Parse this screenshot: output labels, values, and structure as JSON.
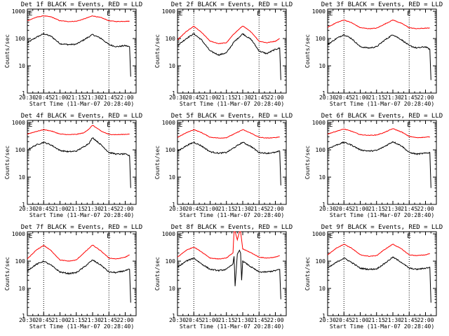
{
  "figure": {
    "x_tick_labels": [
      "20:30",
      "20:45",
      "21:00",
      "21:15",
      "21:30",
      "21:45",
      "22:00"
    ],
    "y_tick_labels": [
      "1",
      "10",
      "100",
      "1000"
    ],
    "xlabel": "Start Time (11-Mar-07 20:28:40)",
    "ylabel": "Counts/sec",
    "series_names": [
      "Events",
      "LLD"
    ],
    "colors": {
      "events": "#000000",
      "lld": "#ff0000",
      "axes": "#000000",
      "background": "#ffffff"
    },
    "marker_labels": [
      "E",
      "E"
    ]
  },
  "chart_data": [
    {
      "type": "line",
      "title": "Det 1f BLACK = Events, RED = LLD",
      "xlabel": "Start Time (11-Mar-07 20:28:40)",
      "ylabel": "Counts/sec",
      "xlim_minutes_after_20_30": [
        0,
        100
      ],
      "ylim": [
        1,
        1200
      ],
      "y_scale": "log",
      "grid": false,
      "vertical_lines_at": [
        "20:45",
        "21:45"
      ],
      "series": [
        {
          "name": "Events",
          "color": "#000000",
          "x": [
            "20:30",
            "20:38",
            "20:45",
            "20:52",
            "21:00",
            "21:08",
            "21:15",
            "21:22",
            "21:30",
            "21:38",
            "21:45",
            "21:52",
            "22:00",
            "22:04",
            "22:05"
          ],
          "values": [
            70,
            110,
            150,
            120,
            65,
            60,
            62,
            90,
            140,
            100,
            60,
            50,
            55,
            50,
            4
          ]
        },
        {
          "name": "LLD",
          "color": "#ff0000",
          "x": [
            "20:30",
            "20:38",
            "20:45",
            "20:52",
            "21:00",
            "21:08",
            "21:15",
            "21:22",
            "21:30",
            "21:38",
            "21:45",
            "21:52",
            "22:00",
            "22:04"
          ],
          "values": [
            450,
            600,
            680,
            620,
            450,
            420,
            430,
            520,
            680,
            580,
            450,
            420,
            430,
            430
          ]
        }
      ]
    },
    {
      "type": "line",
      "title": "Det 2f BLACK = Events, RED = LLD",
      "xlabel": "Start Time (11-Mar-07 20:28:40)",
      "ylabel": "Counts/sec",
      "xlim_minutes_after_20_30": [
        0,
        100
      ],
      "ylim": [
        1,
        1200
      ],
      "y_scale": "log",
      "grid": false,
      "vertical_lines_at": [
        "20:45",
        "21:45"
      ],
      "series": [
        {
          "name": "Events",
          "color": "#000000",
          "x": [
            "20:30",
            "20:38",
            "20:45",
            "20:52",
            "21:00",
            "21:08",
            "21:15",
            "21:22",
            "21:30",
            "21:38",
            "21:45",
            "21:52",
            "22:00",
            "22:04",
            "22:05"
          ],
          "values": [
            55,
            100,
            150,
            90,
            35,
            25,
            30,
            75,
            150,
            90,
            35,
            28,
            40,
            45,
            3
          ]
        },
        {
          "name": "LLD",
          "color": "#ff0000",
          "x": [
            "20:30",
            "20:38",
            "20:45",
            "20:52",
            "21:00",
            "21:08",
            "21:15",
            "21:22",
            "21:30",
            "21:38",
            "21:45",
            "21:52",
            "22:00",
            "22:04"
          ],
          "values": [
            90,
            180,
            280,
            170,
            80,
            65,
            70,
            150,
            290,
            170,
            80,
            70,
            80,
            100
          ]
        }
      ]
    },
    {
      "type": "line",
      "title": "Det 3f BLACK = Events, RED = LLD",
      "xlabel": "Start Time (11-Mar-07 20:28:40)",
      "ylabel": "Counts/sec",
      "xlim_minutes_after_20_30": [
        0,
        100
      ],
      "ylim": [
        1,
        1200
      ],
      "y_scale": "log",
      "grid": false,
      "vertical_lines_at": [
        "20:45",
        "21:45"
      ],
      "series": [
        {
          "name": "Events",
          "color": "#000000",
          "x": [
            "20:30",
            "20:38",
            "20:45",
            "20:52",
            "21:00",
            "21:08",
            "21:15",
            "21:22",
            "21:30",
            "21:38",
            "21:45",
            "21:52",
            "22:00",
            "22:04",
            "22:05"
          ],
          "values": [
            60,
            100,
            140,
            100,
            50,
            45,
            50,
            85,
            140,
            90,
            55,
            45,
            50,
            40,
            3
          ]
        },
        {
          "name": "LLD",
          "color": "#ff0000",
          "x": [
            "20:30",
            "20:38",
            "20:45",
            "20:52",
            "21:00",
            "21:08",
            "21:15",
            "21:22",
            "21:30",
            "21:38",
            "21:45",
            "21:52",
            "22:00",
            "22:04"
          ],
          "values": [
            260,
            380,
            480,
            380,
            250,
            230,
            240,
            330,
            480,
            360,
            250,
            230,
            240,
            240
          ]
        }
      ]
    },
    {
      "type": "line",
      "title": "Det 4f BLACK = Events, RED = LLD",
      "xlabel": "Start Time (11-Mar-07 20:28:40)",
      "ylabel": "Counts/sec",
      "xlim_minutes_after_20_30": [
        0,
        100
      ],
      "ylim": [
        1,
        1200
      ],
      "y_scale": "log",
      "grid": false,
      "vertical_lines_at": [
        "20:45",
        "21:45"
      ],
      "series": [
        {
          "name": "Events",
          "color": "#000000",
          "x": [
            "20:30",
            "20:38",
            "20:45",
            "20:52",
            "21:00",
            "21:08",
            "21:15",
            "21:22",
            "21:27",
            "21:30",
            "21:38",
            "21:45",
            "21:52",
            "22:00",
            "22:04",
            "22:05"
          ],
          "values": [
            100,
            150,
            190,
            150,
            95,
            85,
            90,
            130,
            180,
            280,
            150,
            80,
            70,
            70,
            60,
            4
          ]
        },
        {
          "name": "LLD",
          "color": "#ff0000",
          "x": [
            "20:30",
            "20:38",
            "20:45",
            "20:52",
            "21:00",
            "21:08",
            "21:15",
            "21:22",
            "21:27",
            "21:30",
            "21:38",
            "21:45",
            "21:52",
            "22:00",
            "22:04"
          ],
          "values": [
            380,
            470,
            550,
            490,
            380,
            360,
            370,
            420,
            600,
            800,
            480,
            370,
            360,
            370,
            380
          ]
        }
      ]
    },
    {
      "type": "line",
      "title": "Det 5f BLACK = Events, RED = LLD",
      "xlabel": "Start Time (11-Mar-07 20:28:40)",
      "ylabel": "Counts/sec",
      "xlim_minutes_after_20_30": [
        0,
        100
      ],
      "ylim": [
        1,
        1200
      ],
      "y_scale": "log",
      "grid": false,
      "vertical_lines_at": [
        "20:45",
        "21:45"
      ],
      "series": [
        {
          "name": "Events",
          "color": "#000000",
          "x": [
            "20:30",
            "20:38",
            "20:45",
            "20:52",
            "21:00",
            "21:08",
            "21:15",
            "21:22",
            "21:30",
            "21:38",
            "21:45",
            "21:52",
            "22:00",
            "22:04",
            "22:05"
          ],
          "values": [
            90,
            140,
            190,
            140,
            85,
            75,
            80,
            120,
            190,
            130,
            80,
            75,
            80,
            90,
            5
          ]
        },
        {
          "name": "LLD",
          "color": "#ff0000",
          "x": [
            "20:30",
            "20:38",
            "20:45",
            "20:52",
            "21:00",
            "21:08",
            "21:15",
            "21:22",
            "21:30",
            "21:38",
            "21:45",
            "21:52",
            "22:00",
            "22:04"
          ],
          "values": [
            290,
            420,
            550,
            430,
            290,
            270,
            280,
            380,
            550,
            400,
            290,
            270,
            280,
            300
          ]
        }
      ]
    },
    {
      "type": "line",
      "title": "Det 6f BLACK = Events, RED = LLD",
      "xlabel": "Start Time (11-Mar-07 20:28:40)",
      "ylabel": "Counts/sec",
      "xlim_minutes_after_20_30": [
        0,
        100
      ],
      "ylim": [
        1,
        1200
      ],
      "y_scale": "log",
      "grid": false,
      "vertical_lines_at": [
        "20:45",
        "21:45"
      ],
      "series": [
        {
          "name": "Events",
          "color": "#000000",
          "x": [
            "20:30",
            "20:38",
            "20:45",
            "20:52",
            "21:00",
            "21:08",
            "21:15",
            "21:22",
            "21:30",
            "21:38",
            "21:45",
            "21:52",
            "22:00",
            "22:04",
            "22:05"
          ],
          "values": [
            110,
            150,
            190,
            150,
            100,
            90,
            95,
            130,
            200,
            140,
            80,
            70,
            75,
            80,
            4
          ]
        },
        {
          "name": "LLD",
          "color": "#ff0000",
          "x": [
            "20:30",
            "20:38",
            "20:45",
            "20:52",
            "21:00",
            "21:08",
            "21:15",
            "21:22",
            "21:30",
            "21:38",
            "21:45",
            "21:52",
            "22:00",
            "22:04"
          ],
          "values": [
            380,
            480,
            580,
            480,
            360,
            340,
            350,
            430,
            600,
            450,
            310,
            280,
            290,
            300
          ]
        }
      ]
    },
    {
      "type": "line",
      "title": "Det 7f BLACK = Events, RED = LLD",
      "xlabel": "Start Time (11-Mar-07 20:28:40)",
      "ylabel": "Counts/sec",
      "xlim_minutes_after_20_30": [
        0,
        100
      ],
      "ylim": [
        1,
        1200
      ],
      "y_scale": "log",
      "grid": false,
      "vertical_lines_at": [
        "20:45",
        "21:45"
      ],
      "series": [
        {
          "name": "Events",
          "color": "#000000",
          "x": [
            "20:30",
            "20:38",
            "20:45",
            "20:52",
            "21:00",
            "21:08",
            "21:15",
            "21:22",
            "21:30",
            "21:38",
            "21:45",
            "21:52",
            "22:00",
            "22:04",
            "22:05"
          ],
          "values": [
            45,
            75,
            100,
            70,
            40,
            35,
            38,
            60,
            110,
            70,
            40,
            38,
            45,
            50,
            3
          ]
        },
        {
          "name": "LLD",
          "color": "#ff0000",
          "x": [
            "20:30",
            "20:38",
            "20:45",
            "20:52",
            "21:00",
            "21:08",
            "21:15",
            "21:22",
            "21:30",
            "21:38",
            "21:45",
            "21:52",
            "22:00",
            "22:04"
          ],
          "values": [
            120,
            250,
            380,
            240,
            110,
            100,
            110,
            200,
            390,
            230,
            130,
            120,
            140,
            170
          ]
        }
      ]
    },
    {
      "type": "line",
      "title": "Det 8f BLACK = Events, RED = LLD",
      "xlabel": "Start Time (11-Mar-07 20:28:40)",
      "ylabel": "Counts/sec",
      "xlim_minutes_after_20_30": [
        0,
        100
      ],
      "ylim": [
        1,
        1200
      ],
      "y_scale": "log",
      "grid": false,
      "vertical_lines_at": [
        "20:45",
        "21:45"
      ],
      "series": [
        {
          "name": "Events",
          "color": "#000000",
          "x": [
            "20:30",
            "20:38",
            "20:45",
            "20:52",
            "21:00",
            "21:08",
            "21:15",
            "21:21",
            "21:22",
            "21:23",
            "21:25",
            "21:27",
            "21:28",
            "21:29",
            "21:30",
            "21:38",
            "21:45",
            "21:52",
            "22:00",
            "22:04",
            "22:05"
          ],
          "values": [
            60,
            100,
            130,
            80,
            50,
            45,
            50,
            80,
            150,
            12,
            180,
            250,
            200,
            20,
            100,
            60,
            40,
            40,
            45,
            50,
            4
          ]
        },
        {
          "name": "LLD",
          "color": "#ff0000",
          "x": [
            "20:30",
            "20:38",
            "20:45",
            "20:52",
            "21:00",
            "21:08",
            "21:15",
            "21:21",
            "21:22",
            "21:23",
            "21:25",
            "21:27",
            "21:28",
            "21:29",
            "21:30",
            "21:38",
            "21:45",
            "21:52",
            "22:00",
            "22:04"
          ],
          "values": [
            140,
            250,
            330,
            220,
            130,
            120,
            130,
            200,
            1200,
            1200,
            600,
            1200,
            1200,
            600,
            280,
            200,
            140,
            130,
            140,
            160
          ]
        }
      ]
    },
    {
      "type": "line",
      "title": "Det 9f BLACK = Events, RED = LLD",
      "xlabel": "Start Time (11-Mar-07 20:28:40)",
      "ylabel": "Counts/sec",
      "xlim_minutes_after_20_30": [
        0,
        100
      ],
      "ylim": [
        1,
        1200
      ],
      "y_scale": "log",
      "grid": false,
      "vertical_lines_at": [
        "20:45",
        "21:45"
      ],
      "series": [
        {
          "name": "Events",
          "color": "#000000",
          "x": [
            "20:30",
            "20:38",
            "20:45",
            "20:52",
            "21:00",
            "21:08",
            "21:15",
            "21:22",
            "21:30",
            "21:38",
            "21:45",
            "21:52",
            "22:00",
            "22:04",
            "22:05"
          ],
          "values": [
            55,
            90,
            130,
            90,
            55,
            50,
            52,
            80,
            140,
            90,
            55,
            50,
            55,
            60,
            3
          ]
        },
        {
          "name": "LLD",
          "color": "#ff0000",
          "x": [
            "20:30",
            "20:38",
            "20:45",
            "20:52",
            "21:00",
            "21:08",
            "21:15",
            "21:22",
            "21:30",
            "21:38",
            "21:45",
            "21:52",
            "22:00",
            "22:04"
          ],
          "values": [
            170,
            300,
            420,
            300,
            170,
            150,
            160,
            260,
            420,
            280,
            170,
            160,
            170,
            190
          ]
        }
      ]
    }
  ]
}
